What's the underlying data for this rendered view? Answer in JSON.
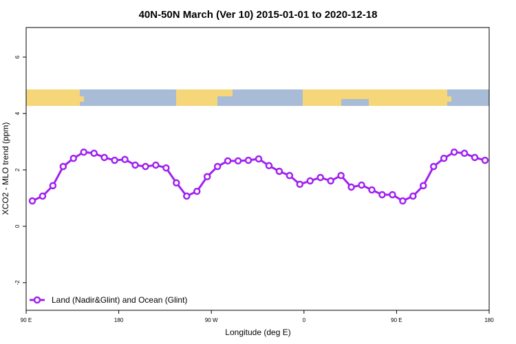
{
  "chart_data": {
    "type": "line",
    "title": "40N-50N March (Ver 10)   2015-01-01 to 2020-12-18",
    "x_label": "Longitude (deg E)",
    "y_label": "XCO2 - MLO trend (ppm)",
    "x": [
      96,
      106,
      116,
      126,
      136,
      146,
      156,
      166,
      176,
      186,
      196,
      206,
      216,
      226,
      236,
      246,
      256,
      266,
      276,
      286,
      296,
      306,
      316,
      326,
      336,
      346,
      356,
      366,
      376,
      386,
      396,
      406,
      416,
      426,
      436,
      446,
      456,
      466,
      476,
      486,
      496,
      506,
      516,
      526,
      536
    ],
    "series": [
      {
        "name": "Land (Nadir&Glint) and Ocean (Glint)",
        "color": "#a020f0",
        "values": [
          0.9,
          1.07,
          1.44,
          2.12,
          2.41,
          2.63,
          2.59,
          2.44,
          2.34,
          2.37,
          2.17,
          2.12,
          2.17,
          2.07,
          1.54,
          1.07,
          1.24,
          1.76,
          2.12,
          2.32,
          2.32,
          2.34,
          2.39,
          2.15,
          1.95,
          1.8,
          1.49,
          1.61,
          1.73,
          1.61,
          1.8,
          1.39,
          1.46,
          1.29,
          1.12,
          1.12,
          0.9,
          1.07,
          1.44,
          2.12,
          2.41,
          2.63,
          2.59,
          2.44,
          2.34
        ]
      }
    ],
    "xlim": [
      90,
      540
    ],
    "xticks": [
      {
        "value": 90,
        "label": "90 E"
      },
      180,
      {
        "value": 270,
        "label": "90 W"
      },
      {
        "value": 360,
        "label": "0"
      },
      {
        "value": 450,
        "label": "90 E"
      },
      {
        "value": 540,
        "label": "180"
      }
    ],
    "ylim": [
      -2.98,
      7.05
    ],
    "yticks": [
      -2,
      0,
      2,
      4,
      6
    ],
    "legend": "bottom-left"
  }
}
